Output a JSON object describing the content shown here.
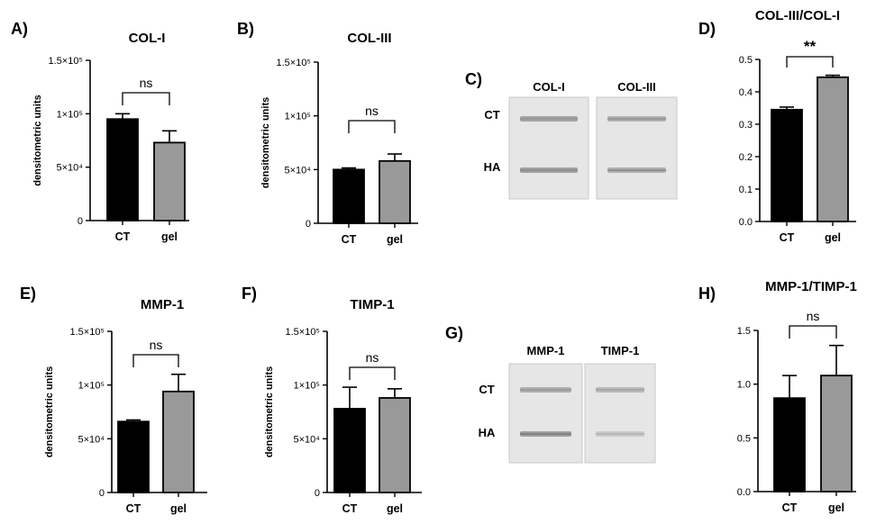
{
  "chart_data": [
    {
      "id": "A",
      "panel_label": "A)",
      "type": "bar",
      "title": "COL-I",
      "ylabel": "densitometric units",
      "categories": [
        "CT",
        "gel"
      ],
      "values": [
        95000,
        73000
      ],
      "errors": [
        5000,
        11000
      ],
      "ylim": [
        0,
        150000
      ],
      "yticks": [
        0,
        50000,
        100000,
        150000
      ],
      "yticklabels": [
        "0",
        "5×10⁴",
        "1×10⁵",
        "1.5×10⁵"
      ],
      "significance": "ns",
      "bar_colors": [
        "#000000",
        "#999999"
      ]
    },
    {
      "id": "B",
      "panel_label": "B)",
      "type": "bar",
      "title": "COL-III",
      "ylabel": "densitometric units",
      "categories": [
        "CT",
        "gel"
      ],
      "values": [
        50000,
        58000
      ],
      "errors": [
        1500,
        6500
      ],
      "ylim": [
        0,
        150000
      ],
      "yticks": [
        0,
        50000,
        100000,
        150000
      ],
      "yticklabels": [
        "0",
        "5×10⁴",
        "1×10⁵",
        "1.5×10⁵"
      ],
      "significance": "ns",
      "bar_colors": [
        "#000000",
        "#999999"
      ]
    },
    {
      "id": "D",
      "panel_label": "D)",
      "type": "bar",
      "title": "COL-III/COL-I",
      "ylabel": "",
      "categories": [
        "CT",
        "gel"
      ],
      "values": [
        0.345,
        0.445
      ],
      "errors": [
        0.008,
        0.006
      ],
      "ylim": [
        0,
        0.5
      ],
      "yticks": [
        0,
        0.1,
        0.2,
        0.3,
        0.4,
        0.5
      ],
      "yticklabels": [
        "0.0",
        "0.1",
        "0.2",
        "0.3",
        "0.4",
        "0.5"
      ],
      "significance": "**",
      "bar_colors": [
        "#000000",
        "#999999"
      ]
    },
    {
      "id": "E",
      "panel_label": "E)",
      "type": "bar",
      "title": "MMP-1",
      "ylabel": "densitometric units",
      "categories": [
        "CT",
        "gel"
      ],
      "values": [
        66000,
        94000
      ],
      "errors": [
        1500,
        16000
      ],
      "ylim": [
        0,
        150000
      ],
      "yticks": [
        0,
        50000,
        100000,
        150000
      ],
      "yticklabels": [
        "0",
        "5×10⁴",
        "1×10⁵",
        "1.5×10⁵"
      ],
      "significance": "ns",
      "bar_colors": [
        "#000000",
        "#999999"
      ]
    },
    {
      "id": "F",
      "panel_label": "F)",
      "type": "bar",
      "title": "TIMP-1",
      "ylabel": "densitometric units",
      "categories": [
        "CT",
        "gel"
      ],
      "values": [
        78000,
        88000
      ],
      "errors": [
        20000,
        8500
      ],
      "ylim": [
        0,
        150000
      ],
      "yticks": [
        0,
        50000,
        100000,
        150000
      ],
      "yticklabels": [
        "0",
        "5×10⁴",
        "1×10⁵",
        "1.5×10⁵"
      ],
      "significance": "ns",
      "bar_colors": [
        "#000000",
        "#999999"
      ]
    },
    {
      "id": "H",
      "panel_label": "H)",
      "type": "bar",
      "title": "MMP-1/TIMP-1",
      "ylabel": "",
      "categories": [
        "CT",
        "gel"
      ],
      "values": [
        0.87,
        1.08
      ],
      "errors": [
        0.21,
        0.28
      ],
      "ylim": [
        0,
        1.5
      ],
      "yticks": [
        0,
        0.5,
        1.0,
        1.5
      ],
      "yticklabels": [
        "0.0",
        "0.5",
        "1.0",
        "1.5"
      ],
      "significance": "ns",
      "bar_colors": [
        "#000000",
        "#999999"
      ]
    }
  ],
  "blots": [
    {
      "id": "C",
      "panel_label": "C)",
      "lanes": [
        "COL-I",
        "COL-III"
      ],
      "rows": [
        "CT",
        "HA"
      ]
    },
    {
      "id": "G",
      "panel_label": "G)",
      "lanes": [
        "MMP-1",
        "TIMP-1"
      ],
      "rows": [
        "CT",
        "HA"
      ]
    }
  ]
}
